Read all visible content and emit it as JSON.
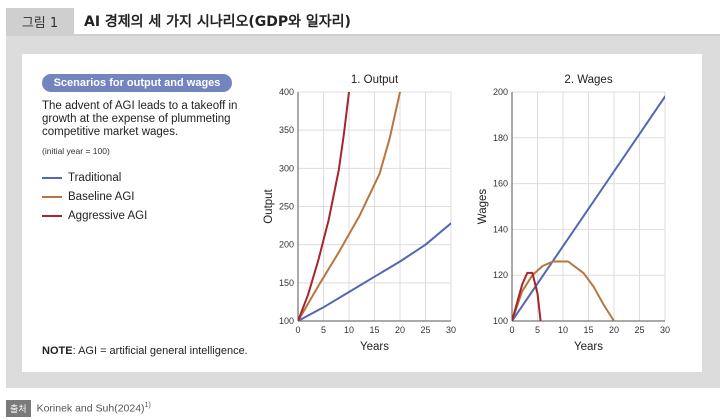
{
  "header": {
    "figure_label": "그림 1",
    "title": "AI 경제의 세 가지 시나리오(GDP와 일자리)"
  },
  "panel": {
    "heading": "Scenarios for output and wages",
    "description": "The advent of AGI leads to a takeoff in growth at the expense of plummeting competitive market wages.",
    "initial_year_note": "(initial year = 100)",
    "note_label": "NOTE",
    "note_text": ": AGI = artificial general intelligence."
  },
  "legend": [
    {
      "name": "Traditional",
      "color": "#5268b0"
    },
    {
      "name": "Baseline AGI",
      "color": "#b5773e"
    },
    {
      "name": "Aggressive AGI",
      "color": "#a6252b"
    }
  ],
  "source": {
    "badge": "출처",
    "text": "Korinek and Suh(2024)",
    "superscript": "1)"
  },
  "chart_data": [
    {
      "type": "line",
      "title": "1. Output",
      "xlabel": "Years",
      "ylabel": "Output",
      "xlim": [
        0,
        30
      ],
      "ylim": [
        100,
        400
      ],
      "xticks": [
        0,
        5,
        10,
        15,
        20,
        25,
        30
      ],
      "yticks": [
        100,
        150,
        200,
        250,
        300,
        350,
        400
      ],
      "grid": true,
      "series": [
        {
          "name": "Traditional",
          "color": "#5268b0",
          "x": [
            0,
            5,
            10,
            15,
            20,
            25,
            30
          ],
          "y": [
            100,
            118,
            138,
            158,
            178,
            200,
            228
          ]
        },
        {
          "name": "Baseline AGI",
          "color": "#b5773e",
          "x": [
            0,
            4,
            8,
            12,
            16,
            18,
            20
          ],
          "y": [
            100,
            146,
            190,
            237,
            293,
            340,
            400
          ]
        },
        {
          "name": "Aggressive AGI",
          "color": "#a6252b",
          "x": [
            0,
            2,
            4,
            6,
            8,
            9,
            10
          ],
          "y": [
            100,
            135,
            180,
            232,
            298,
            345,
            400
          ]
        }
      ]
    },
    {
      "type": "line",
      "title": "2. Wages",
      "xlabel": "Years",
      "ylabel": "Wages",
      "xlim": [
        0,
        30
      ],
      "ylim": [
        100,
        200
      ],
      "xticks": [
        0,
        5,
        10,
        15,
        20,
        25,
        30
      ],
      "yticks": [
        100,
        120,
        140,
        160,
        180,
        200
      ],
      "grid": true,
      "series": [
        {
          "name": "Traditional",
          "color": "#5268b0",
          "x": [
            0,
            30
          ],
          "y": [
            100,
            198
          ]
        },
        {
          "name": "Baseline AGI",
          "color": "#b5773e",
          "x": [
            0,
            2,
            4,
            6,
            8,
            11,
            14,
            16,
            18,
            20
          ],
          "y": [
            100,
            113,
            120,
            124,
            126,
            126,
            121,
            115,
            107,
            100
          ]
        },
        {
          "name": "Aggressive AGI",
          "color": "#a6252b",
          "x": [
            0,
            1,
            2,
            3,
            4,
            5,
            5.6
          ],
          "y": [
            100,
            108,
            116,
            121,
            121,
            112,
            100
          ]
        }
      ]
    }
  ]
}
